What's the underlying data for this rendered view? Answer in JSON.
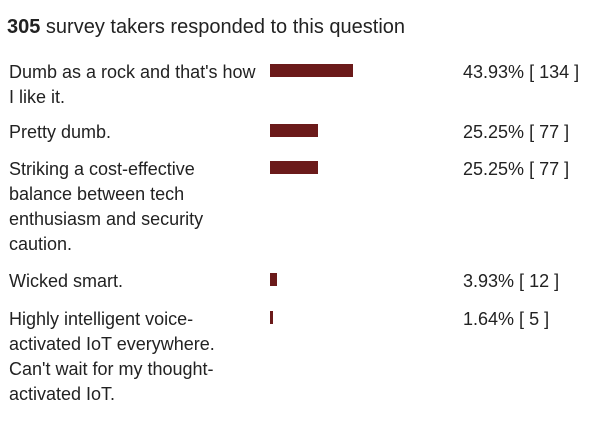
{
  "header": {
    "count": "305",
    "text": " survey takers responded to this question"
  },
  "options": [
    {
      "label": "Dumb as a rock and that's how I like it.",
      "percent": "43.93%",
      "count": "134",
      "fraction": 0.4393
    },
    {
      "label": "Pretty dumb.",
      "percent": "25.25%",
      "count": "77",
      "fraction": 0.2525
    },
    {
      "label": "Striking a cost-effective balance between tech enthusiasm and security caution.",
      "percent": "25.25%",
      "count": "77",
      "fraction": 0.2525
    },
    {
      "label": "Wicked smart.",
      "percent": "3.93%",
      "count": "12",
      "fraction": 0.0393
    },
    {
      "label": "Highly intelligent voice-activated IoT everywhere. Can't wait for my thought-activated IoT.",
      "percent": "1.64%",
      "count": "5",
      "fraction": 0.0164
    }
  ],
  "colors": {
    "bar": "#6b1a1a",
    "text": "#222222"
  }
}
